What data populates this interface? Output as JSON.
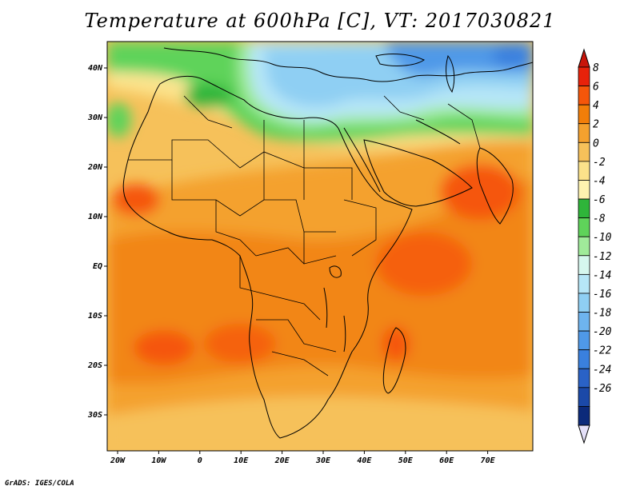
{
  "title": "Temperature at 600hPa [C], VT: 2017030821",
  "credit": "GrADS: IGES/COLA",
  "map": {
    "lon_labels": [
      "20W",
      "10W",
      "0",
      "10E",
      "20E",
      "30E",
      "40E",
      "50E",
      "60E",
      "70E"
    ],
    "lat_labels": [
      "40N",
      "30N",
      "20N",
      "10N",
      "EQ",
      "10S",
      "20S",
      "30S"
    ]
  },
  "colorbar": {
    "labels": [
      "8",
      "6",
      "4",
      "2",
      "0",
      "-2",
      "-4",
      "-6",
      "-8",
      "-10",
      "-12",
      "-14",
      "-16",
      "-18",
      "-20",
      "-22",
      "-24",
      "-26"
    ],
    "colors": [
      "#e8220a",
      "#f5560a",
      "#f27e09",
      "#f4a12e",
      "#f6c15a",
      "#fbe28a",
      "#fff3b0",
      "#2fb53a",
      "#5fd35a",
      "#a0eb9a",
      "#d6f7ee",
      "#b6e6f7",
      "#8fcff3",
      "#6eb4ee",
      "#4f99e8",
      "#3a80de",
      "#2a62c6",
      "#1b49a8",
      "#0c2a7a"
    ],
    "top_arrow_color": "#c8150a",
    "bottom_arrow_color": "#e4e0f8"
  }
}
